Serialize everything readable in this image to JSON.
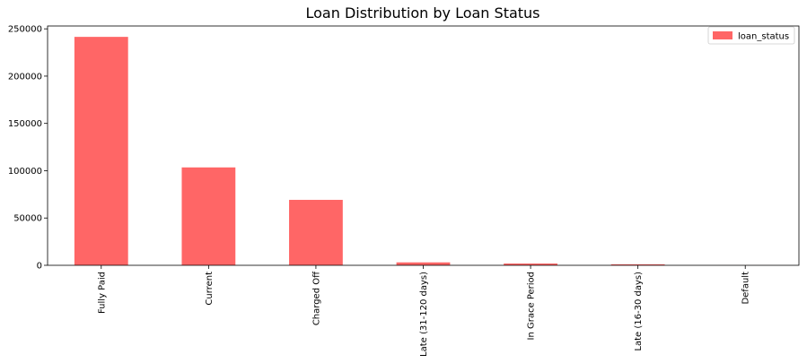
{
  "chart_data": {
    "type": "bar",
    "title": "Loan Distribution by Loan Status",
    "xlabel": "",
    "ylabel": "",
    "categories": [
      "Fully Paid",
      "Current",
      "Charged Off",
      "Late (31-120 days)",
      "In Grace Period",
      "Late (16-30 days)",
      "Default"
    ],
    "series": [
      {
        "name": "loan_status",
        "values": [
          241500,
          103500,
          69200,
          3100,
          1900,
          1100,
          40
        ],
        "color": "#ff6666"
      }
    ],
    "ylim": [
      0,
      253000
    ],
    "yticks": [
      0,
      50000,
      100000,
      150000,
      200000,
      250000
    ],
    "legend": "top-right",
    "grid": false
  }
}
